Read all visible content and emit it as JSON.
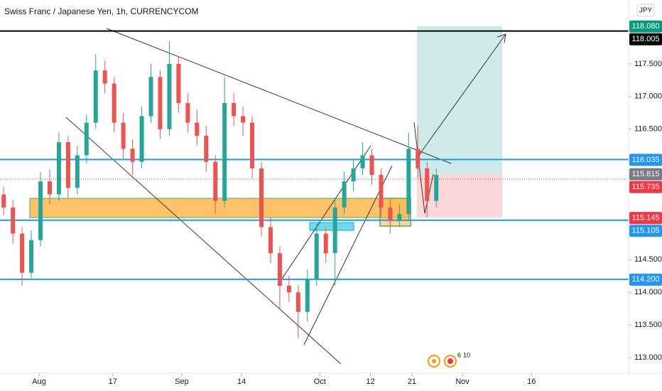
{
  "chart_data": {
    "type": "candlestick",
    "title": "Swiss Franc / Japanese Yen, 1h, CURRENCYCOM",
    "currency_button": "JPY",
    "xlim": [
      -7.5,
      129.1
    ],
    "xticks": [
      {
        "value": 1,
        "label": "Aug"
      },
      17,
      {
        "value": 32,
        "label": "Sep"
      },
      {
        "value": 45,
        "label": "14"
      },
      {
        "value": 62,
        "label": "Oct"
      },
      {
        "value": 73,
        "label": "12"
      },
      {
        "value": 82,
        "label": "21"
      },
      {
        "value": 93,
        "label": "Nov"
      },
      {
        "value": 108,
        "label": "16"
      }
    ],
    "ylim": [
      112.76,
      118.48
    ],
    "yticks": [
      {
        "value": 113,
        "label": "113.000"
      },
      {
        "value": 113.5,
        "label": "113.500"
      },
      {
        "value": 114,
        "label": "114.000"
      },
      {
        "value": 114.5,
        "label": "114.500"
      },
      {
        "value": 116.5,
        "label": "116.500"
      },
      {
        "value": 117,
        "label": "117.000"
      },
      {
        "value": 117.5,
        "label": "117.500"
      }
    ],
    "up_color": "#26a69a",
    "down_color": "#ef5350",
    "x": [
      -6.7,
      -4.7,
      -2.7,
      -0.7,
      1.3,
      3.3,
      5.3,
      7.3,
      9.3,
      11.3,
      13.3,
      15.3,
      17.3,
      19.3,
      21.3,
      23.3,
      25.3,
      27.3,
      29.3,
      31.3,
      33.3,
      35.3,
      37.3,
      39.3,
      41.3,
      43.3,
      45.3,
      47.3,
      49.3,
      51.3,
      53.3,
      55.3,
      57.3,
      59.3,
      61.3,
      63.3,
      65.3,
      67.3,
      69.3,
      71.3,
      73.3,
      75.3,
      77.3,
      79.3,
      81.3,
      83.3,
      85.3,
      87.3
    ],
    "open": [
      115.5,
      115.3,
      114.9,
      114.3,
      114.8,
      115.7,
      115.5,
      116.3,
      115.6,
      116.1,
      116.6,
      117.4,
      117.2,
      116.6,
      116.2,
      116.0,
      116.7,
      117.3,
      116.5,
      117.5,
      116.9,
      116.6,
      116.4,
      116.0,
      115.4,
      116.9,
      116.7,
      116.6,
      115.9,
      115.0,
      114.6,
      114.1,
      114.0,
      113.7,
      114.2,
      114.9,
      114.6,
      115.3,
      115.7,
      115.9,
      116.1,
      115.8,
      115.3,
      115.1,
      115.2,
      116.2,
      115.9,
      115.4
    ],
    "high": [
      115.62,
      115.42,
      115.0,
      114.95,
      115.85,
      115.88,
      116.45,
      116.4,
      116.25,
      116.72,
      117.65,
      117.55,
      117.3,
      116.75,
      116.35,
      116.85,
      117.5,
      117.4,
      117.85,
      117.62,
      117.05,
      116.8,
      116.55,
      116.1,
      117.3,
      117.05,
      116.85,
      116.7,
      116.0,
      115.15,
      114.7,
      114.25,
      114.1,
      114.35,
      115.05,
      115.0,
      115.45,
      115.85,
      116.05,
      116.3,
      116.2,
      115.9,
      115.45,
      115.35,
      116.45,
      116.55,
      116.0,
      115.9
    ],
    "low": [
      115.18,
      114.75,
      114.1,
      114.22,
      114.7,
      115.35,
      115.4,
      115.45,
      115.5,
      115.98,
      116.5,
      117.05,
      116.45,
      116.05,
      115.8,
      115.9,
      116.6,
      116.35,
      116.4,
      116.75,
      116.45,
      116.25,
      115.85,
      115.2,
      115.3,
      116.55,
      116.4,
      115.75,
      114.85,
      114.45,
      113.75,
      113.85,
      113.3,
      113.55,
      114.1,
      114.45,
      114.1,
      115.2,
      115.55,
      115.8,
      115.65,
      115.15,
      114.9,
      115.0,
      115.1,
      115.75,
      115.15,
      115.3
    ],
    "close": [
      115.3,
      114.9,
      114.3,
      114.8,
      115.7,
      115.5,
      116.3,
      115.6,
      116.1,
      116.6,
      117.4,
      117.2,
      116.6,
      116.2,
      116.0,
      116.7,
      117.3,
      116.5,
      117.5,
      116.9,
      116.6,
      116.4,
      116.0,
      115.4,
      116.9,
      116.7,
      116.6,
      115.9,
      115.0,
      114.6,
      114.1,
      114.0,
      113.7,
      114.2,
      114.9,
      114.6,
      115.3,
      115.7,
      115.9,
      116.1,
      115.8,
      115.3,
      115.1,
      115.2,
      116.2,
      115.9,
      115.4,
      115.8
    ],
    "price_labels": [
      {
        "value": 118.08,
        "label": "118.080",
        "color": "#089981",
        "line": "none"
      },
      {
        "value": 118.005,
        "label": "118.005",
        "color": "#000000",
        "line": "solid"
      },
      {
        "value": 116.035,
        "label": "116.035",
        "color": "#2196f3",
        "line": "solid"
      },
      {
        "value": 115.815,
        "label": "115.815",
        "color": "#787b86",
        "line": "none"
      },
      {
        "value": 115.735,
        "label": "115.735",
        "color": "#f23645",
        "line": "dotted"
      },
      {
        "value": 115.145,
        "label": "115.145",
        "color": "#f23645",
        "line": "none"
      },
      {
        "value": 115.105,
        "label": "115.105",
        "color": "#2196f3",
        "line": "solid"
      },
      {
        "value": 114.2,
        "label": "114.200",
        "color": "#2196f3",
        "line": "solid"
      }
    ],
    "event_counts": [
      6,
      10
    ]
  }
}
